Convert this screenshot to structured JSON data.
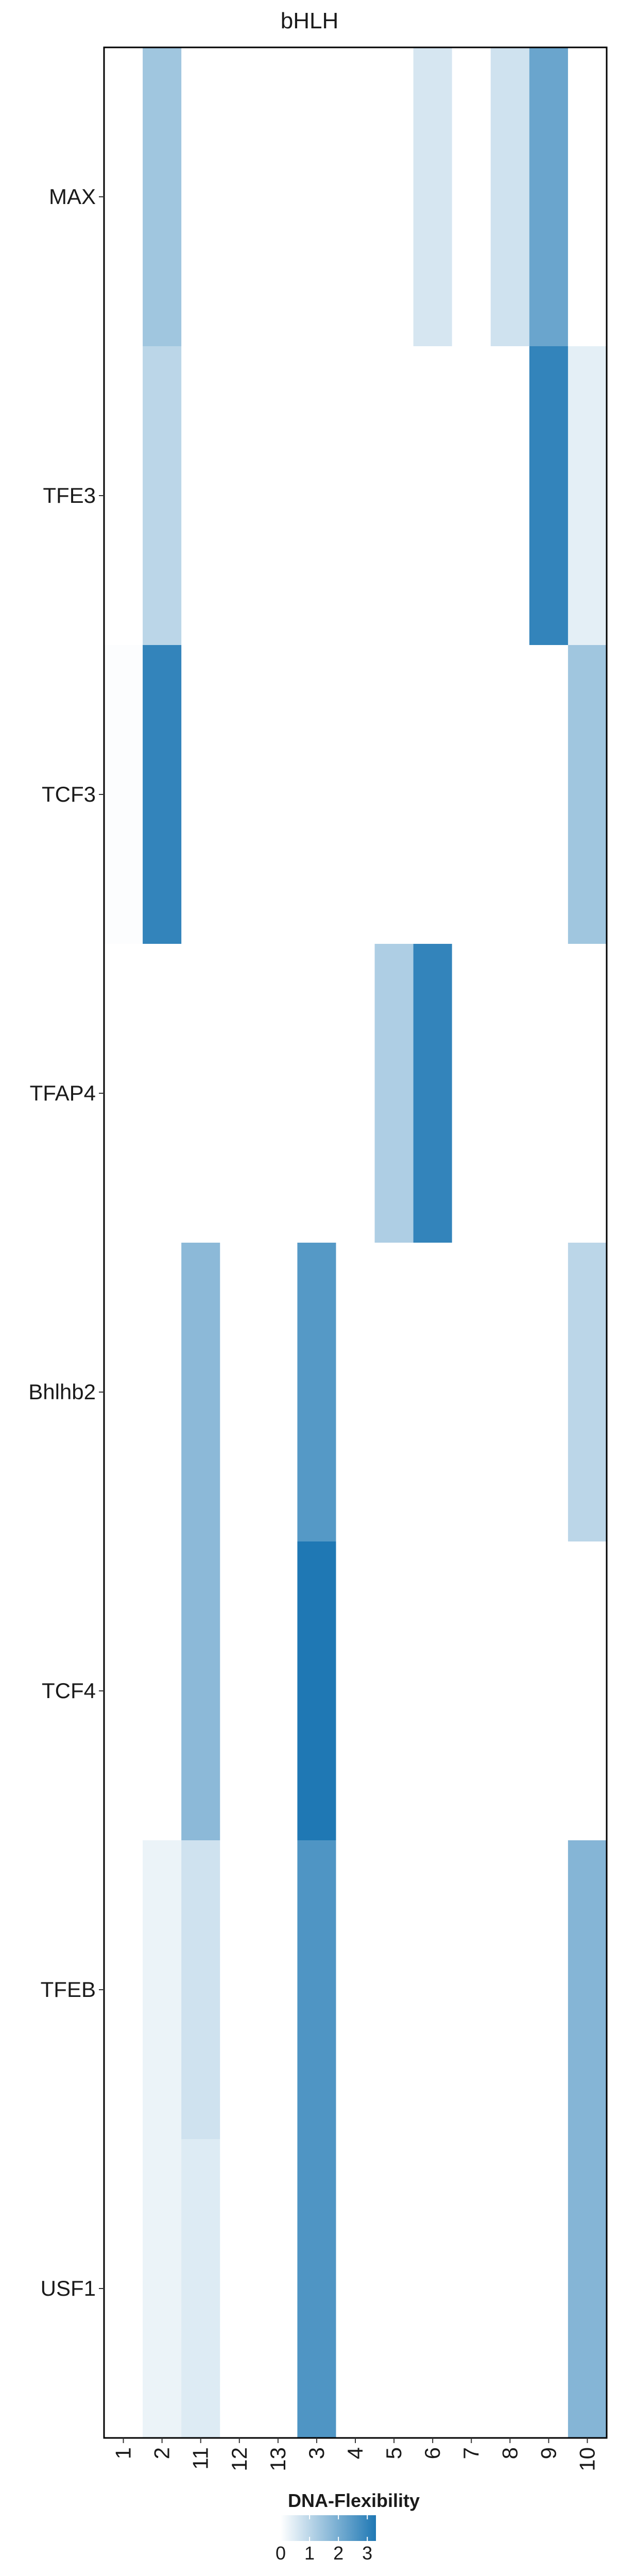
{
  "chart_data": {
    "type": "heatmap",
    "title": "bHLH",
    "xlabel": "",
    "ylabel": "",
    "x_categories": [
      "1",
      "2",
      "11",
      "12",
      "13",
      "3",
      "4",
      "5",
      "6",
      "7",
      "8",
      "9",
      "10"
    ],
    "y_categories": [
      "MAX",
      "TFE3",
      "TCF3",
      "TFAP4",
      "Bhlhb2",
      "TCF4",
      "TFEB",
      "USF1"
    ],
    "values": [
      [
        0,
        1.4,
        0,
        0,
        0,
        0,
        0,
        0,
        0.6,
        0,
        0.7,
        2.2,
        0
      ],
      [
        0,
        1.0,
        0,
        0,
        0,
        0,
        0,
        0,
        0,
        0,
        0,
        3.0,
        0.4
      ],
      [
        0.05,
        3.0,
        0,
        0,
        0,
        0,
        0,
        0,
        0,
        0,
        0,
        0,
        1.4
      ],
      [
        0,
        0,
        0,
        0,
        0,
        0,
        0,
        1.2,
        3.0,
        0,
        0,
        0,
        0
      ],
      [
        0,
        0,
        1.7,
        0,
        0,
        2.5,
        0,
        0,
        0,
        0,
        0,
        0,
        1.0
      ],
      [
        0,
        0,
        1.7,
        0,
        0,
        3.3,
        0,
        0,
        0,
        0,
        0,
        0,
        0
      ],
      [
        0,
        0.3,
        0.7,
        0,
        0,
        2.6,
        0,
        0,
        0,
        0,
        0,
        0,
        1.8
      ],
      [
        0,
        0.3,
        0.5,
        0,
        0,
        2.6,
        0,
        0,
        0,
        0,
        0,
        0,
        1.8
      ]
    ],
    "legend": {
      "title": "DNA-Flexibility",
      "ticks": [
        "0",
        "1",
        "2",
        "3"
      ],
      "min": 0,
      "max": 3.3,
      "placement": "bottom"
    },
    "colors": {
      "low": "#ffffff",
      "high": "#1f78b4"
    },
    "grid": false
  }
}
